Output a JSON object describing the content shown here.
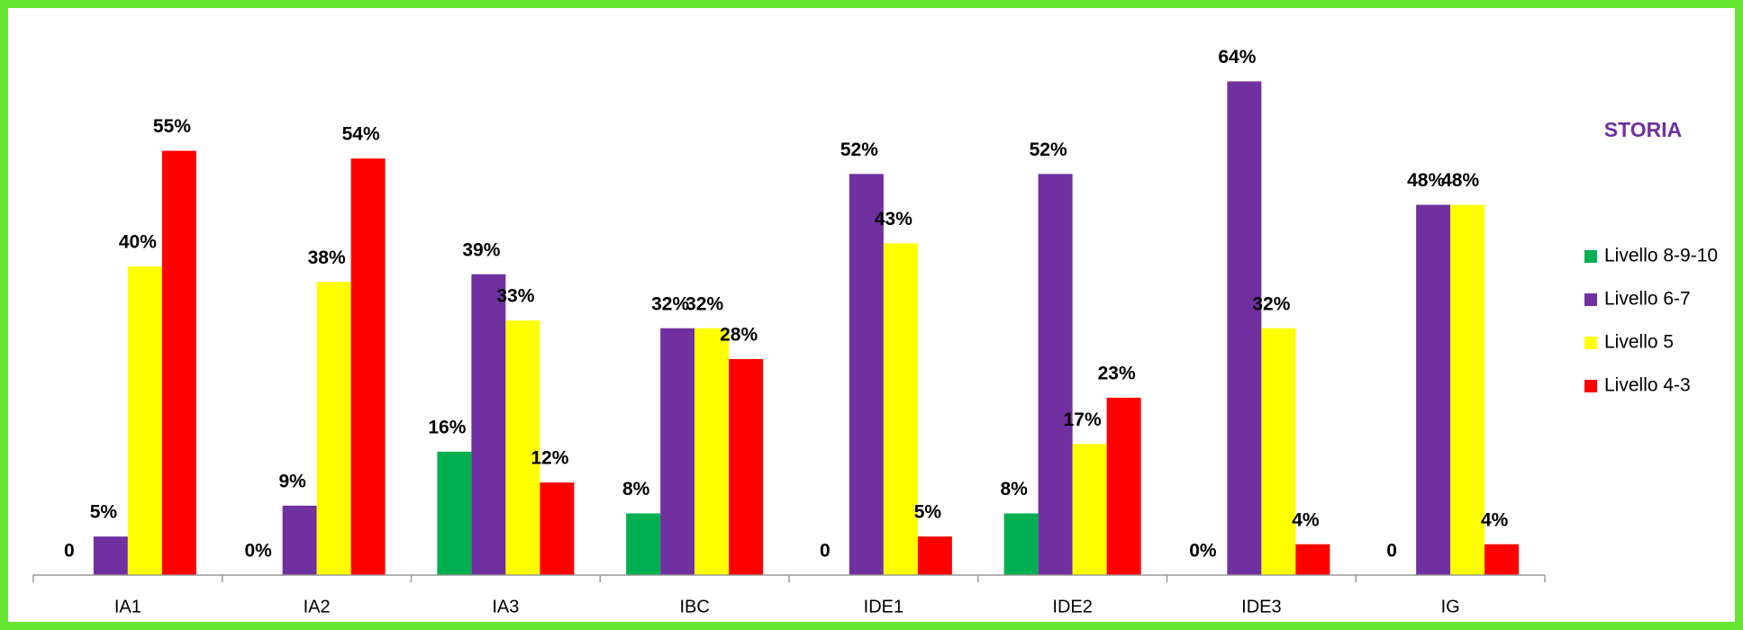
{
  "chart_data": {
    "type": "bar",
    "title": "STORIA",
    "categories": [
      "IA1",
      "IA2",
      "IA3",
      "IBC",
      "IDE1",
      "IDE2",
      "IDE3",
      "IG"
    ],
    "ylim": [
      0,
      70
    ],
    "legend": "right",
    "series": [
      {
        "name": "Livello 8-9-10",
        "color": "#00b050",
        "values": [
          0,
          0,
          16,
          8,
          0,
          8,
          0,
          0
        ],
        "value_labels": [
          "0",
          "0%",
          "16%",
          "8%",
          "0",
          "8%",
          "0%",
          "0"
        ]
      },
      {
        "name": "Livello 6-7",
        "color": "#7030a0",
        "values": [
          5,
          9,
          39,
          32,
          52,
          52,
          64,
          48
        ],
        "value_labels": [
          "5%",
          "9%",
          "39%",
          "32%",
          "52%",
          "52%",
          "64%",
          "48%"
        ]
      },
      {
        "name": "Livello 5",
        "color": "#ffff00",
        "values": [
          40,
          38,
          33,
          32,
          43,
          17,
          32,
          48
        ],
        "value_labels": [
          "40%",
          "38%",
          "33%",
          "32%",
          "43%",
          "17%",
          "32%",
          "48%"
        ]
      },
      {
        "name": "Livello 4-3",
        "color": "#ff0000",
        "values": [
          55,
          54,
          12,
          28,
          5,
          23,
          4,
          4
        ],
        "value_labels": [
          "55%",
          "54%",
          "12%",
          "28%",
          "5%",
          "23%",
          "4%",
          "4%"
        ]
      }
    ]
  }
}
